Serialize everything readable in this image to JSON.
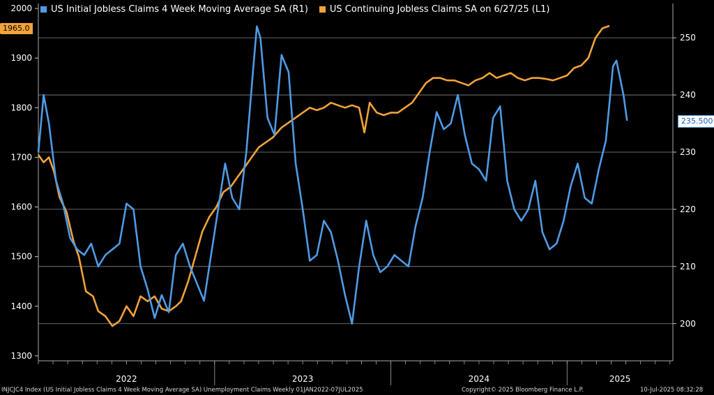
{
  "chart_data": {
    "type": "line",
    "legend": [
      {
        "label": "US Initial Jobless Claims 4 Week Moving Average SA  (R1)",
        "color": "#4f9be6"
      },
      {
        "label": "US Continuing Jobless Claims SA  on 6/27/25  (L1)",
        "color": "#f2a33a"
      }
    ],
    "left_axis": {
      "ylim": [
        1290,
        2010
      ],
      "ticks": [
        1300,
        1400,
        1500,
        1600,
        1700,
        1800,
        1900,
        2000
      ]
    },
    "right_axis": {
      "ylim": [
        193.5,
        256
      ],
      "ticks": [
        200,
        210,
        220,
        230,
        240,
        250
      ]
    },
    "x_axis": {
      "range": [
        2022.0,
        2025.6
      ],
      "year_labels": [
        {
          "label": "2022",
          "x": 2022.5
        },
        {
          "label": "2023",
          "x": 2023.5
        },
        {
          "label": "2024",
          "x": 2024.5
        },
        {
          "label": "2025",
          "x": 2025.3
        }
      ],
      "year_separators": [
        2023.0,
        2024.0,
        2025.0
      ]
    },
    "series": [
      {
        "name": "US Continuing Jobless Claims SA",
        "axis": "left",
        "color": "#f2a33a",
        "points": [
          [
            2022.0,
            1705
          ],
          [
            2022.03,
            1690
          ],
          [
            2022.06,
            1700
          ],
          [
            2022.09,
            1670
          ],
          [
            2022.12,
            1620
          ],
          [
            2022.16,
            1590
          ],
          [
            2022.2,
            1530
          ],
          [
            2022.23,
            1500
          ],
          [
            2022.27,
            1430
          ],
          [
            2022.31,
            1420
          ],
          [
            2022.34,
            1390
          ],
          [
            2022.38,
            1380
          ],
          [
            2022.42,
            1360
          ],
          [
            2022.46,
            1370
          ],
          [
            2022.5,
            1400
          ],
          [
            2022.54,
            1380
          ],
          [
            2022.58,
            1420
          ],
          [
            2022.62,
            1410
          ],
          [
            2022.66,
            1420
          ],
          [
            2022.7,
            1395
          ],
          [
            2022.74,
            1390
          ],
          [
            2022.78,
            1400
          ],
          [
            2022.81,
            1410
          ],
          [
            2022.85,
            1450
          ],
          [
            2022.89,
            1500
          ],
          [
            2022.93,
            1550
          ],
          [
            2022.97,
            1580
          ],
          [
            2023.01,
            1600
          ],
          [
            2023.05,
            1630
          ],
          [
            2023.09,
            1640
          ],
          [
            2023.13,
            1660
          ],
          [
            2023.17,
            1680
          ],
          [
            2023.21,
            1700
          ],
          [
            2023.25,
            1720
          ],
          [
            2023.29,
            1730
          ],
          [
            2023.33,
            1740
          ],
          [
            2023.38,
            1760
          ],
          [
            2023.42,
            1770
          ],
          [
            2023.46,
            1780
          ],
          [
            2023.5,
            1790
          ],
          [
            2023.54,
            1800
          ],
          [
            2023.58,
            1795
          ],
          [
            2023.62,
            1800
          ],
          [
            2023.66,
            1810
          ],
          [
            2023.7,
            1805
          ],
          [
            2023.74,
            1800
          ],
          [
            2023.78,
            1805
          ],
          [
            2023.82,
            1800
          ],
          [
            2023.85,
            1750
          ],
          [
            2023.88,
            1810
          ],
          [
            2023.92,
            1790
          ],
          [
            2023.96,
            1785
          ],
          [
            2024.0,
            1790
          ],
          [
            2024.04,
            1790
          ],
          [
            2024.08,
            1800
          ],
          [
            2024.12,
            1810
          ],
          [
            2024.16,
            1830
          ],
          [
            2024.2,
            1850
          ],
          [
            2024.24,
            1860
          ],
          [
            2024.28,
            1860
          ],
          [
            2024.32,
            1855
          ],
          [
            2024.36,
            1855
          ],
          [
            2024.4,
            1850
          ],
          [
            2024.44,
            1845
          ],
          [
            2024.48,
            1855
          ],
          [
            2024.52,
            1860
          ],
          [
            2024.56,
            1870
          ],
          [
            2024.6,
            1860
          ],
          [
            2024.64,
            1865
          ],
          [
            2024.68,
            1870
          ],
          [
            2024.72,
            1860
          ],
          [
            2024.76,
            1855
          ],
          [
            2024.8,
            1860
          ],
          [
            2024.84,
            1860
          ],
          [
            2024.88,
            1858
          ],
          [
            2024.92,
            1855
          ],
          [
            2024.96,
            1860
          ],
          [
            2025.0,
            1865
          ],
          [
            2025.04,
            1880
          ],
          [
            2025.08,
            1885
          ],
          [
            2025.12,
            1900
          ],
          [
            2025.16,
            1940
          ],
          [
            2025.2,
            1960
          ],
          [
            2025.24,
            1965
          ]
        ]
      },
      {
        "name": "US Initial Jobless Claims 4 Week Moving Average SA",
        "axis": "right",
        "color": "#4f9be6",
        "points": [
          [
            2022.0,
            230
          ],
          [
            2022.03,
            240
          ],
          [
            2022.06,
            235
          ],
          [
            2022.1,
            225
          ],
          [
            2022.14,
            221
          ],
          [
            2022.18,
            215
          ],
          [
            2022.22,
            213
          ],
          [
            2022.26,
            212
          ],
          [
            2022.3,
            214
          ],
          [
            2022.34,
            210
          ],
          [
            2022.38,
            212
          ],
          [
            2022.42,
            213
          ],
          [
            2022.46,
            214
          ],
          [
            2022.5,
            221
          ],
          [
            2022.54,
            220
          ],
          [
            2022.58,
            210
          ],
          [
            2022.62,
            206
          ],
          [
            2022.66,
            201
          ],
          [
            2022.7,
            205
          ],
          [
            2022.74,
            202
          ],
          [
            2022.78,
            212
          ],
          [
            2022.82,
            214
          ],
          [
            2022.86,
            210
          ],
          [
            2022.9,
            207
          ],
          [
            2022.94,
            204
          ],
          [
            2022.98,
            212
          ],
          [
            2023.02,
            220
          ],
          [
            2023.06,
            228
          ],
          [
            2023.1,
            222
          ],
          [
            2023.14,
            220
          ],
          [
            2023.18,
            230
          ],
          [
            2023.22,
            245
          ],
          [
            2023.24,
            252
          ],
          [
            2023.26,
            250
          ],
          [
            2023.3,
            236
          ],
          [
            2023.34,
            233
          ],
          [
            2023.38,
            247
          ],
          [
            2023.42,
            244
          ],
          [
            2023.46,
            228
          ],
          [
            2023.5,
            220
          ],
          [
            2023.54,
            211
          ],
          [
            2023.58,
            212
          ],
          [
            2023.62,
            218
          ],
          [
            2023.66,
            216
          ],
          [
            2023.7,
            211
          ],
          [
            2023.74,
            205
          ],
          [
            2023.78,
            200
          ],
          [
            2023.82,
            210
          ],
          [
            2023.86,
            218
          ],
          [
            2023.9,
            212
          ],
          [
            2023.94,
            209
          ],
          [
            2023.98,
            210
          ],
          [
            2024.02,
            212
          ],
          [
            2024.06,
            211
          ],
          [
            2024.1,
            210
          ],
          [
            2024.14,
            217
          ],
          [
            2024.18,
            222
          ],
          [
            2024.22,
            230
          ],
          [
            2024.26,
            237
          ],
          [
            2024.3,
            234
          ],
          [
            2024.34,
            235
          ],
          [
            2024.38,
            240
          ],
          [
            2024.42,
            233
          ],
          [
            2024.46,
            228
          ],
          [
            2024.5,
            227
          ],
          [
            2024.54,
            225
          ],
          [
            2024.58,
            236
          ],
          [
            2024.62,
            238
          ],
          [
            2024.66,
            225
          ],
          [
            2024.7,
            220
          ],
          [
            2024.74,
            218
          ],
          [
            2024.78,
            220
          ],
          [
            2024.82,
            225
          ],
          [
            2024.86,
            216
          ],
          [
            2024.9,
            213
          ],
          [
            2024.94,
            214
          ],
          [
            2024.98,
            218
          ],
          [
            2025.02,
            224
          ],
          [
            2025.06,
            228
          ],
          [
            2025.1,
            222
          ],
          [
            2025.14,
            221
          ],
          [
            2025.18,
            227
          ],
          [
            2025.22,
            232
          ],
          [
            2025.26,
            245
          ],
          [
            2025.28,
            246
          ],
          [
            2025.32,
            240
          ],
          [
            2025.34,
            235.5
          ]
        ]
      }
    ],
    "value_tags": {
      "left_last": "1965.0",
      "right_last": "235.500"
    }
  },
  "footer": {
    "left": "INJCJC4 Index (US Initial Jobless Claims 4 Week Moving Average SA) Unemployment Claims  Weekly 01JAN2022-07JUL2025",
    "center": "Copyright© 2025 Bloomberg Finance L.P.",
    "right": "10-Jul-2025 08:32:28"
  }
}
